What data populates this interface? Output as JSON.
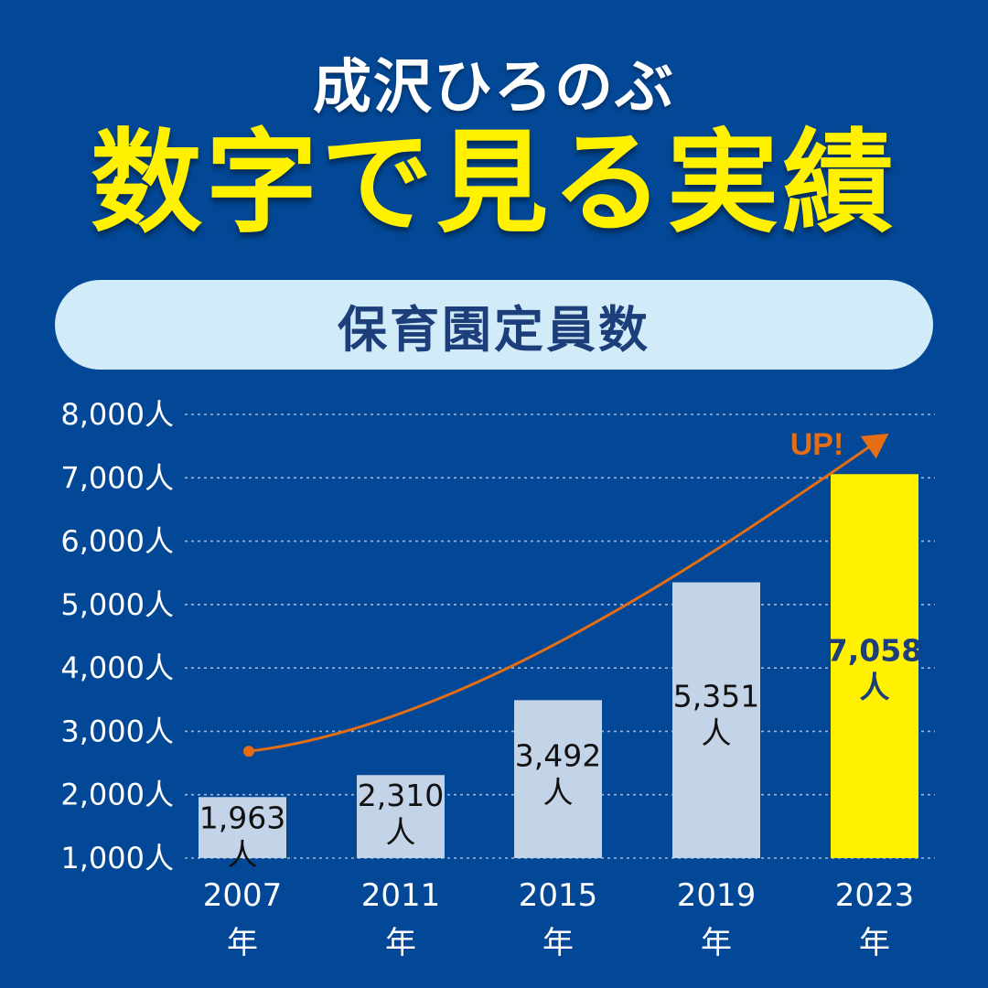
{
  "header": {
    "name": "成沢ひろのぶ",
    "headline": "数字で見る実績"
  },
  "chart_data": {
    "type": "bar",
    "title": "保育園定員数",
    "unit": "人",
    "categories": [
      "2007",
      "2011",
      "2015",
      "2019",
      "2023"
    ],
    "category_suffix": "年",
    "values": [
      1963,
      2310,
      3492,
      5351,
      7058
    ],
    "value_labels": [
      "1,963",
      "2,310",
      "3,492",
      "5,351",
      "7,058"
    ],
    "ylim": [
      1000,
      8000
    ],
    "yticks": [
      1000,
      2000,
      3000,
      4000,
      5000,
      6000,
      7000,
      8000
    ],
    "ytick_labels": [
      "1,000人",
      "2,000人",
      "3,000人",
      "4,000人",
      "5,000人",
      "6,000人",
      "7,000人",
      "8,000人"
    ],
    "grid": true,
    "highlight_index": 4,
    "annotation": "UP!",
    "colors": {
      "background": "#034896",
      "bar": "#c3d3e8",
      "bar_highlight": "#fff100",
      "trend": "#e56e14",
      "grid": "#9fb6d9"
    }
  }
}
